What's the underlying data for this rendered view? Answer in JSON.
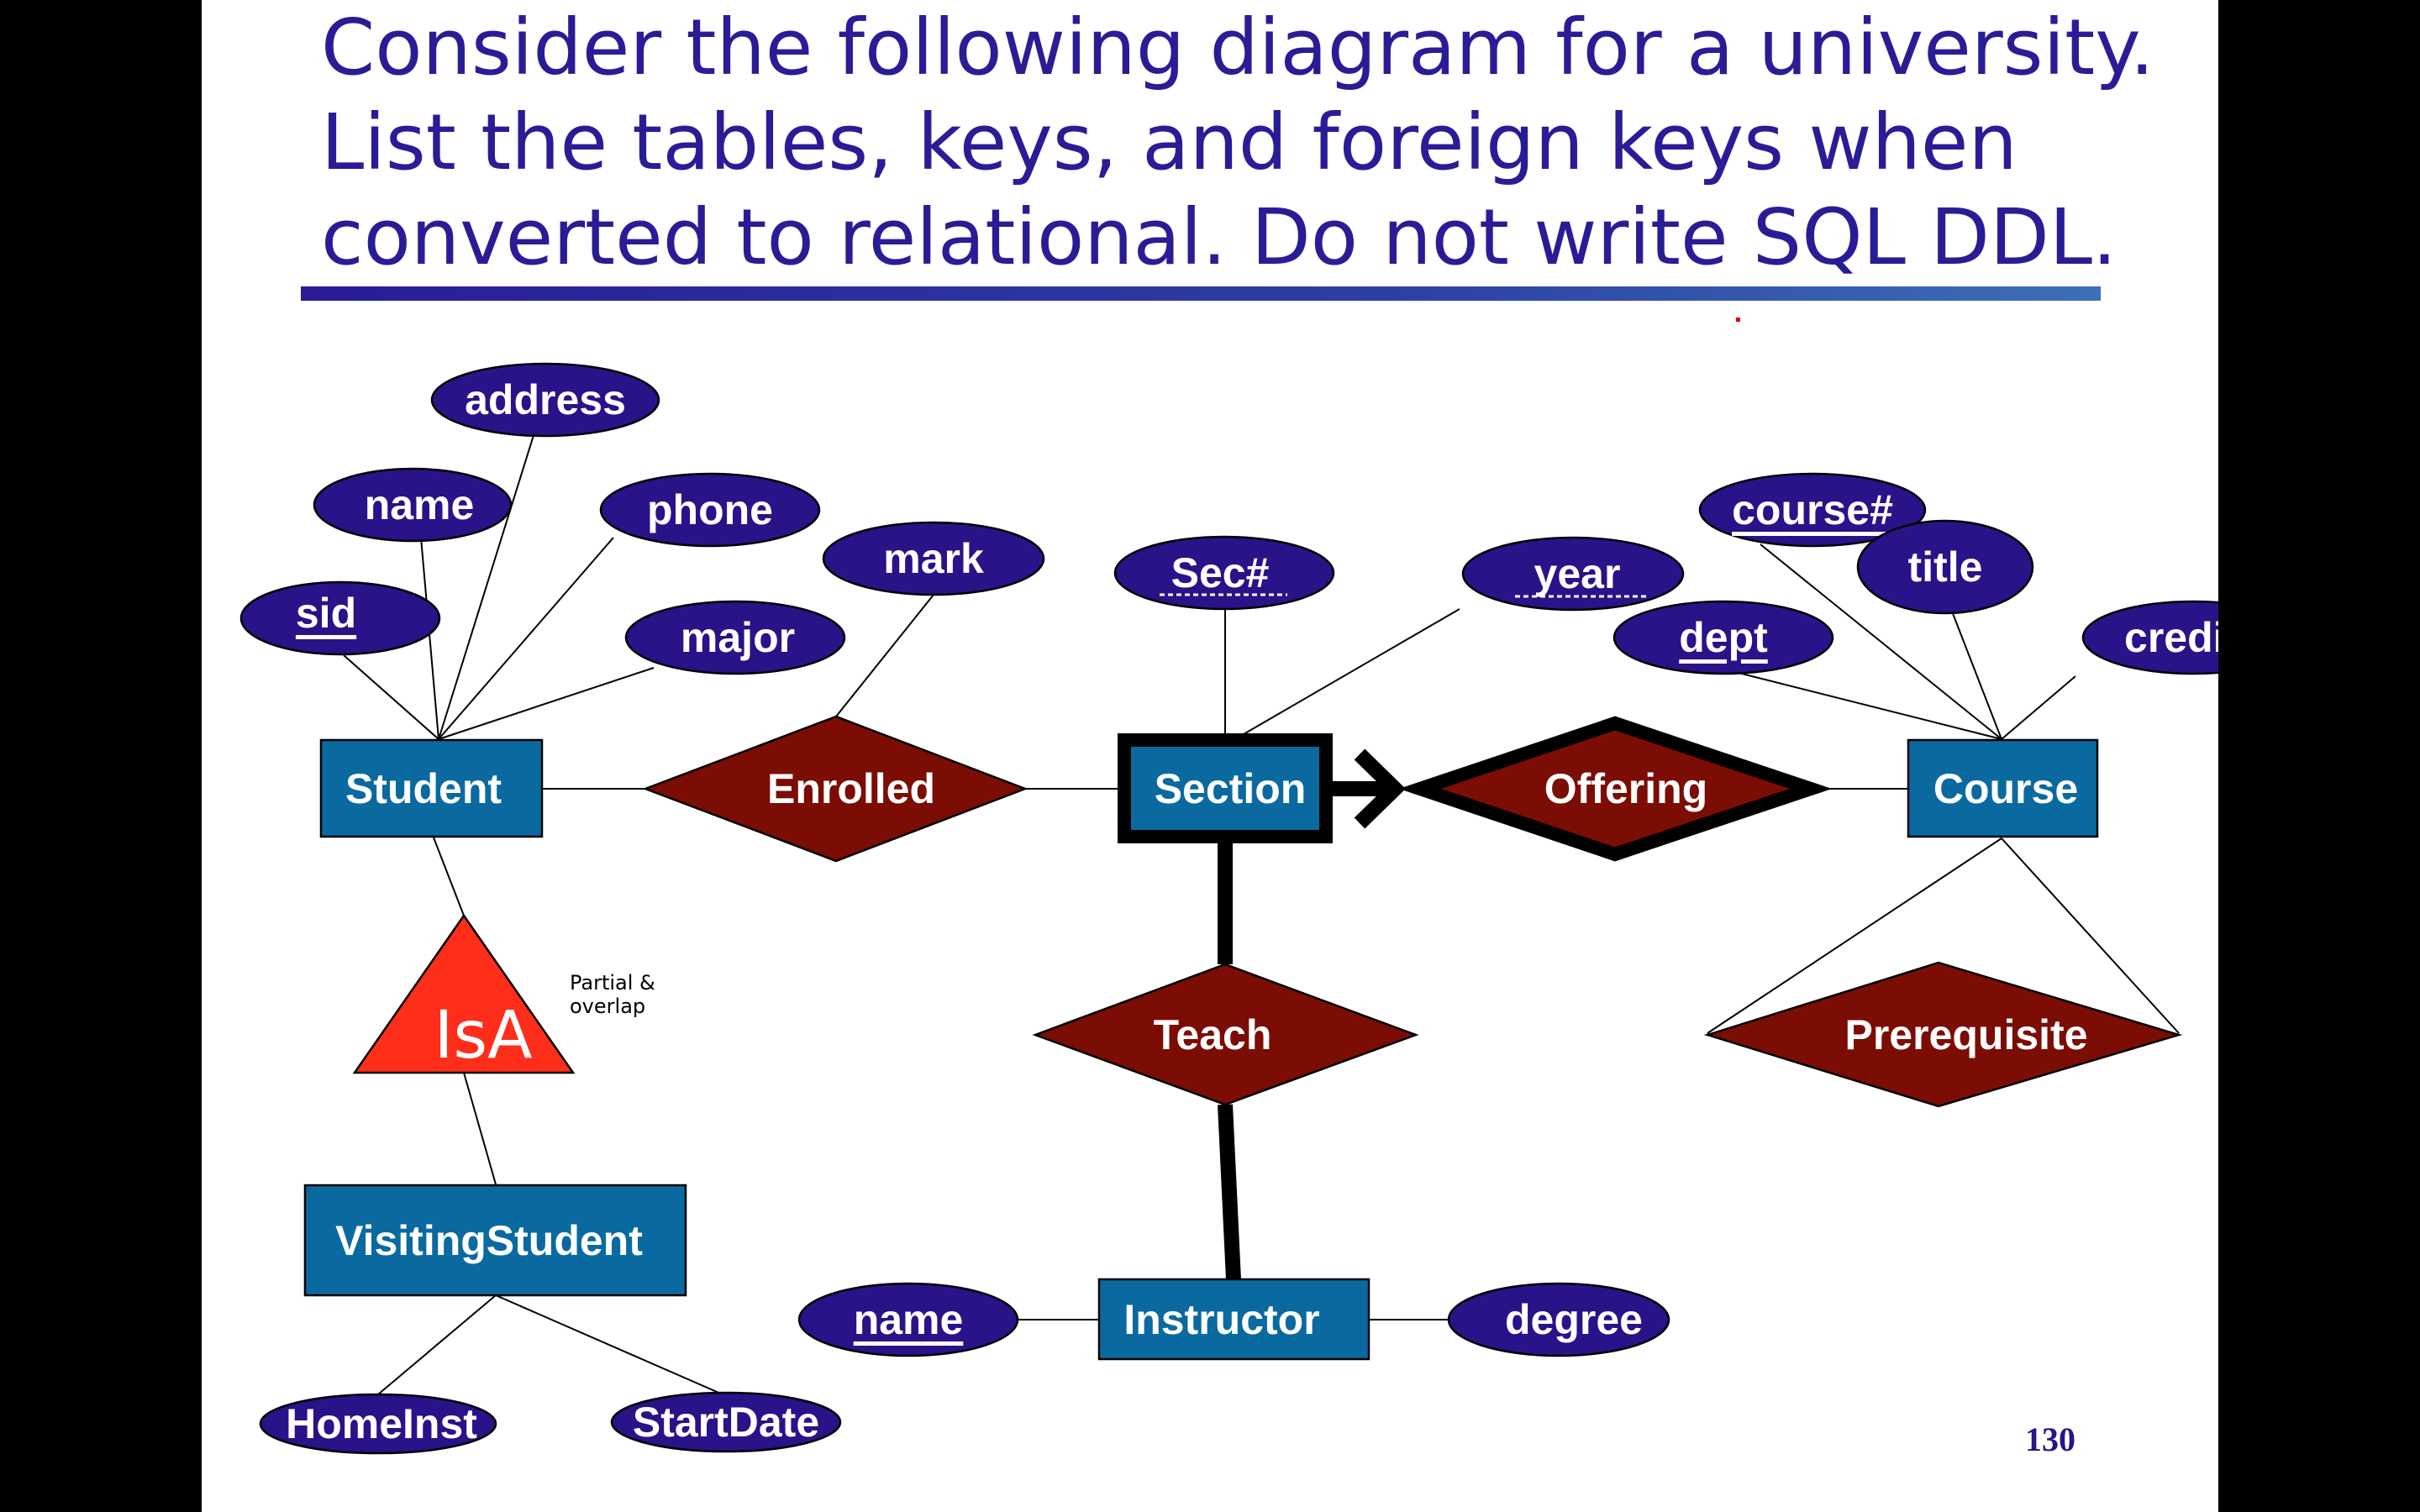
{
  "title": {
    "lines": [
      "Consider the following diagram for a university.",
      "List the tables, keys, and foreign keys when",
      "converted to relational.  Do not write SQL DDL."
    ]
  },
  "entities": {
    "student": "Student",
    "section": "Section",
    "course": "Course",
    "visiting_student": "VisitingStudent",
    "instructor": "Instructor"
  },
  "relationships": {
    "enrolled": "Enrolled",
    "offering": "Offering",
    "teach": "Teach",
    "prerequisite": "Prerequisite"
  },
  "attributes": {
    "address": "address",
    "student_name": "name",
    "phone": "phone",
    "sid": "sid",
    "major": "major",
    "mark": "mark",
    "sec_no": "Sec#",
    "year": "year",
    "course_no": "course#",
    "title": "title",
    "dept": "dept",
    "credits": "credits",
    "home_inst": "HomeInst",
    "start_date": "StartDate",
    "instructor_name": "name",
    "degree": "degree"
  },
  "isa": {
    "label": "IsA",
    "note_line1": "Partial &",
    "note_line2": "overlap"
  },
  "page_number": "130"
}
